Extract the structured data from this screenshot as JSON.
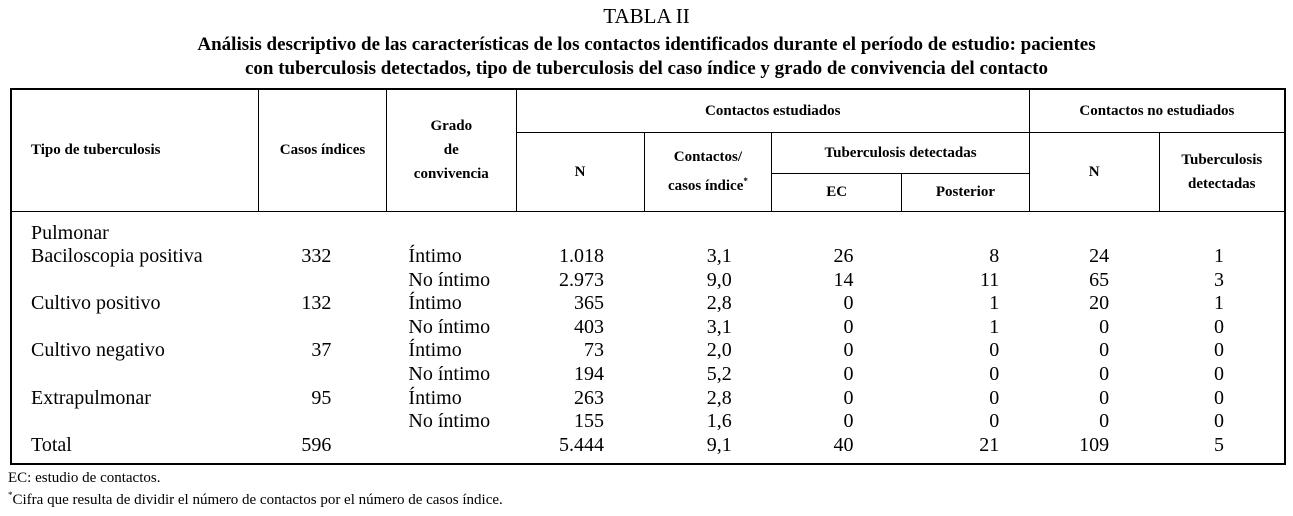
{
  "title": "TABLA II",
  "subtitle_1": "Análisis descriptivo de las características de los contactos identificados durante el período de estudio: pacientes",
  "subtitle_2": "con tuberculosis detectados, tipo de tuberculosis del caso índice y grado de convivencia del contacto",
  "headers": {
    "tipo": "Tipo de tuberculosis",
    "casos": "Casos índices",
    "grado_1": "Grado",
    "grado_2": "de",
    "grado_3": "convivencia",
    "estudiados": "Contactos estudiados",
    "no_estudiados": "Contactos no estudiados",
    "n": "N",
    "ratio_1": "Contactos/",
    "ratio_2": "casos índice",
    "ratio_mark": "*",
    "tb_det": "Tuberculosis detectadas",
    "ec": "EC",
    "posterior": "Posterior",
    "n2": "N",
    "tb_det2_1": "Tuberculosis",
    "tb_det2_2": "detectadas"
  },
  "group_label": "Pulmonar",
  "rows": [
    [
      "Baciloscopia positiva",
      "332",
      "Íntimo",
      "1.018",
      "3,1",
      "26",
      "8",
      "24",
      "1"
    ],
    [
      "",
      "",
      "No íntimo",
      "2.973",
      "9,0",
      "14",
      "11",
      "65",
      "3"
    ],
    [
      "Cultivo positivo",
      "132",
      "Íntimo",
      "365",
      "2,8",
      "0",
      "1",
      "20",
      "1"
    ],
    [
      "",
      "",
      "No íntimo",
      "403",
      "3,1",
      "0",
      "1",
      "0",
      "0"
    ],
    [
      "Cultivo negativo",
      "37",
      "Íntimo",
      "73",
      "2,0",
      "0",
      "0",
      "0",
      "0"
    ],
    [
      "",
      "",
      "No íntimo",
      "194",
      "5,2",
      "0",
      "0",
      "0",
      "0"
    ],
    [
      "Extrapulmonar",
      "95",
      "Íntimo",
      "263",
      "2,8",
      "0",
      "0",
      "0",
      "0"
    ],
    [
      "",
      "",
      "No íntimo",
      "155",
      "1,6",
      "0",
      "0",
      "0",
      "0"
    ],
    [
      "Total",
      "596",
      "",
      "5.444",
      "9,1",
      "40",
      "21",
      "109",
      "5"
    ]
  ],
  "footnotes": {
    "f1": "EC: estudio de contactos.",
    "f2_mark": "*",
    "f2": "Cifra que resulta de dividir el número de contactos por el número de casos índice."
  }
}
